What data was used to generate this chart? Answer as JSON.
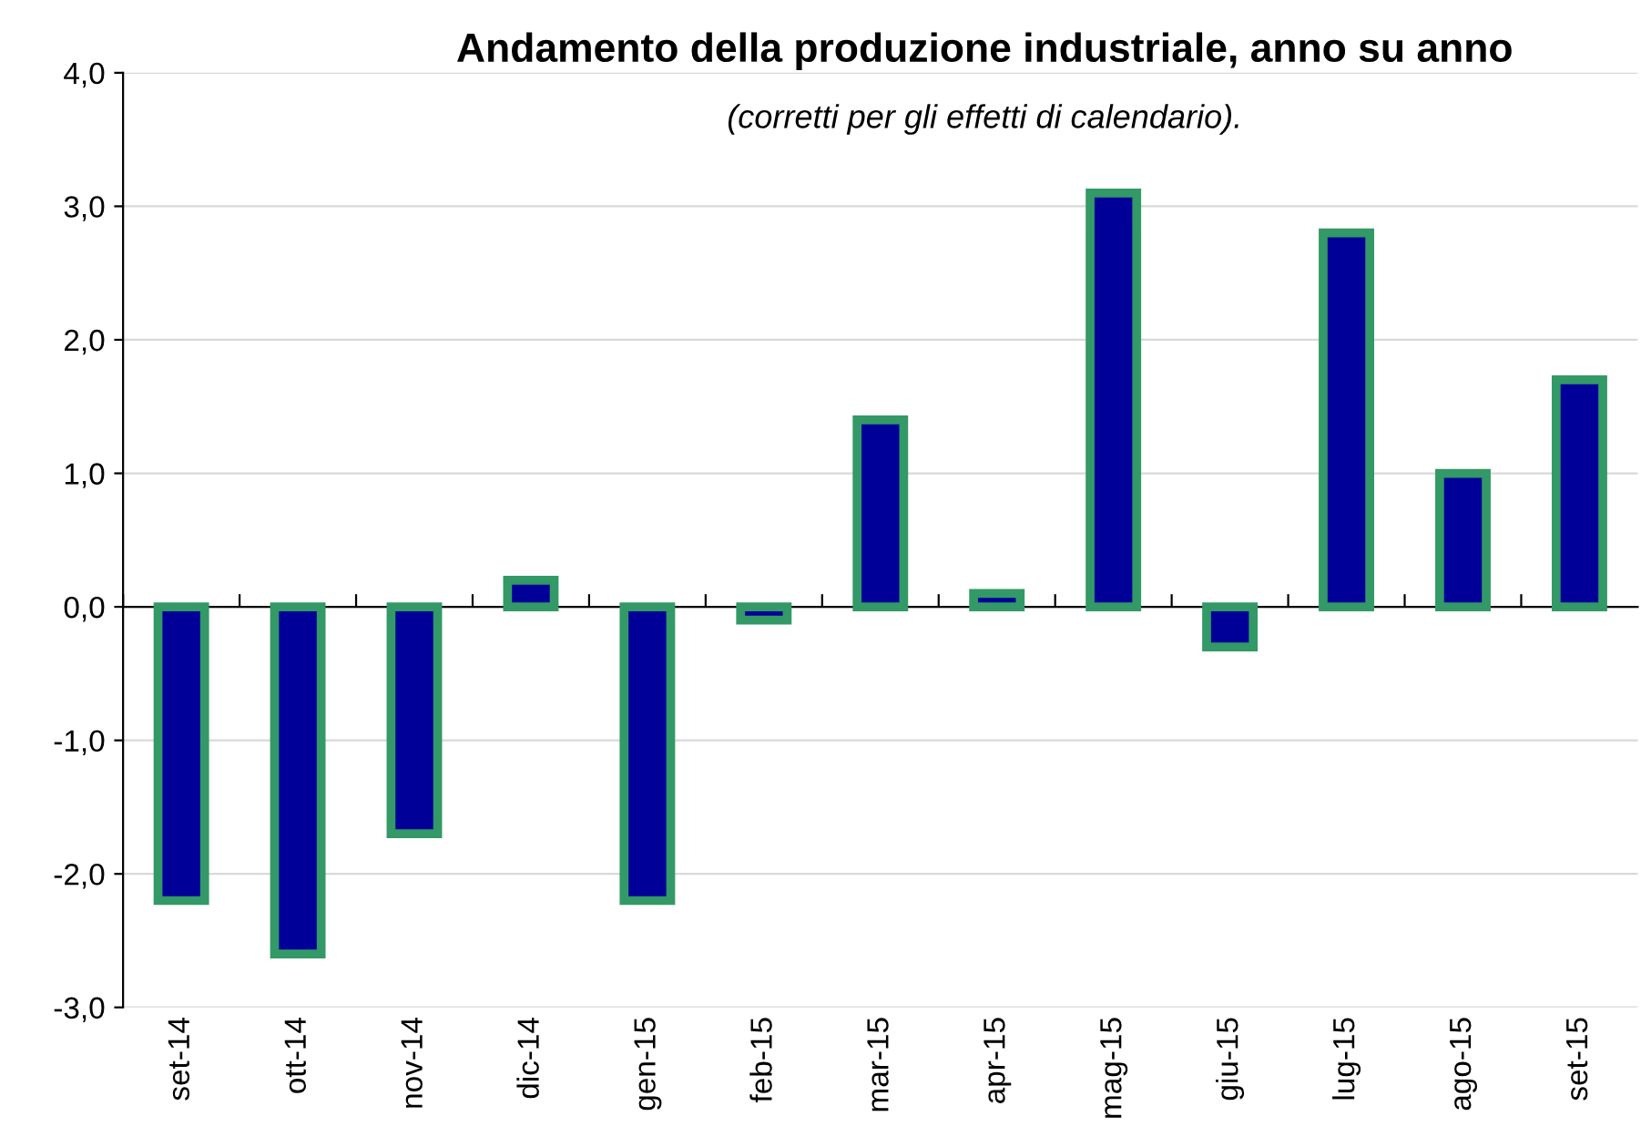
{
  "chart_data": {
    "type": "bar",
    "title": "Andamento della produzione industriale, anno su anno",
    "subtitle": "(corretti per gli effetti di calendario).",
    "categories": [
      "set-14",
      "ott-14",
      "nov-14",
      "dic-14",
      "gen-15",
      "feb-15",
      "mar-15",
      "apr-15",
      "mag-15",
      "giu-15",
      "lug-15",
      "ago-15",
      "set-15"
    ],
    "series": [
      {
        "color": "#000099",
        "values": [
          -2.2,
          -2.6,
          -1.7,
          0.2,
          -2.2,
          -0.1,
          1.4,
          0.1,
          3.1,
          -0.3,
          2.8,
          1.0,
          1.7
        ]
      }
    ],
    "ylim": [
      -3.0,
      4.0
    ],
    "yticks": [
      {
        "value": -3,
        "label": "-3,0"
      },
      {
        "value": -2,
        "label": "-2,0"
      },
      {
        "value": -1,
        "label": "-1,0"
      },
      {
        "value": 0,
        "label": "0,0"
      },
      {
        "value": 1,
        "label": "1,0"
      },
      {
        "value": 2,
        "label": "2,0"
      },
      {
        "value": 3,
        "label": "3,0"
      },
      {
        "value": 4,
        "label": "4,0"
      }
    ],
    "grid": "y",
    "legend": false
  }
}
